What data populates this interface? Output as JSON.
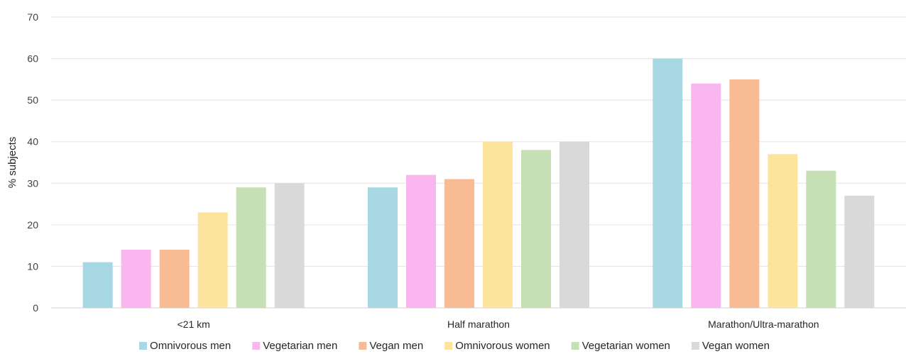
{
  "chart_data": {
    "type": "bar",
    "title": "",
    "xlabel": "",
    "ylabel": "% subjects",
    "ylim": [
      0,
      70
    ],
    "yticks": [
      0,
      10,
      20,
      30,
      40,
      50,
      60,
      70
    ],
    "grid": true,
    "legend_position": "bottom",
    "categories": [
      "<21 km",
      "Half marathon",
      "Marathon/Ultra-marathon"
    ],
    "series": [
      {
        "name": "Omnivorous men",
        "color": "#a8d8e4",
        "values": [
          11,
          29,
          60
        ]
      },
      {
        "name": "Vegetarian men",
        "color": "#f9b6ef",
        "values": [
          14,
          32,
          54
        ]
      },
      {
        "name": "Vegan men",
        "color": "#f9bb93",
        "values": [
          14,
          31,
          55
        ]
      },
      {
        "name": "Omnivorous women",
        "color": "#fde49c",
        "values": [
          23,
          40,
          37
        ]
      },
      {
        "name": "Vegetarian women",
        "color": "#c5e0b5",
        "values": [
          29,
          38,
          33
        ]
      },
      {
        "name": "Vegan women",
        "color": "#d9d9d9",
        "values": [
          30,
          40,
          27
        ]
      }
    ]
  }
}
